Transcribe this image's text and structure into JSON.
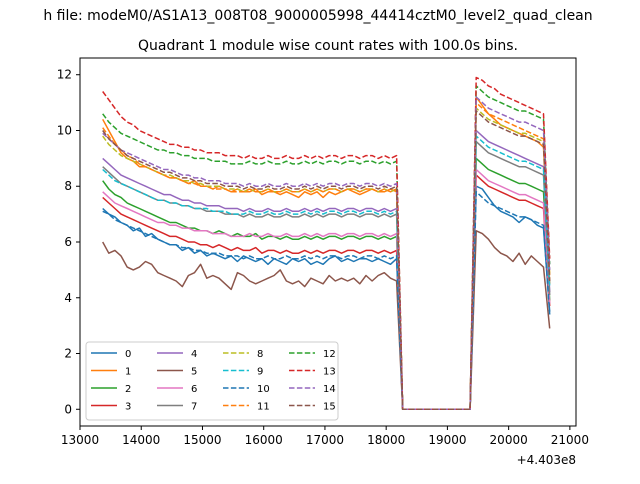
{
  "figure": {
    "suptitle": "h file: modeM0/AS1A13_008T08_9000005998_44414cztM0_level2_quad_clean"
  },
  "chart_data": {
    "type": "line",
    "title": "Quadrant 1 module wise count rates with 100.0s bins.",
    "xlabel": "",
    "ylabel": "",
    "x_offset_label": "+4.403e8",
    "xlim": [
      13000,
      21100
    ],
    "ylim": [
      -0.6,
      12.6
    ],
    "xticks": [
      13000,
      14000,
      15000,
      16000,
      17000,
      18000,
      19000,
      20000,
      21000
    ],
    "yticks": [
      0,
      2,
      4,
      6,
      8,
      10,
      12
    ],
    "grid": false,
    "legend_position": "lower-left",
    "legend_columns": 4,
    "segments": {
      "seg1": {
        "x_start": 13370,
        "x_step": 100,
        "count": 49
      },
      "gap": {
        "x": [
          18270,
          18370,
          19370
        ]
      },
      "seg2": {
        "x_start": 19470,
        "x_step": 100,
        "count": 13
      }
    },
    "series": [
      {
        "name": "0",
        "color": "#1f77b4",
        "dash": "solid",
        "seg1": [
          7.2,
          7.0,
          6.9,
          6.7,
          6.6,
          6.4,
          6.5,
          6.2,
          6.3,
          6.1,
          6.0,
          5.9,
          5.9,
          5.7,
          5.8,
          5.6,
          5.7,
          5.5,
          5.6,
          5.5,
          5.4,
          5.5,
          5.3,
          5.5,
          5.4,
          5.3,
          5.4,
          5.2,
          5.4,
          5.3,
          5.2,
          5.4,
          5.3,
          5.4,
          5.2,
          5.3,
          5.2,
          5.4,
          5.5,
          5.3,
          5.4,
          5.3,
          5.4,
          5.4,
          5.3,
          5.4,
          5.3,
          5.2,
          5.4
        ],
        "seg2": [
          8.0,
          7.9,
          7.6,
          7.3,
          7.1,
          7.0,
          6.9,
          6.7,
          6.9,
          6.8,
          6.6,
          6.5,
          3.5
        ]
      },
      {
        "name": "1",
        "color": "#ff7f0e",
        "dash": "solid",
        "seg1": [
          10.4,
          10.0,
          9.6,
          9.2,
          9.0,
          8.9,
          8.7,
          8.7,
          8.6,
          8.5,
          8.4,
          8.3,
          8.3,
          8.2,
          8.1,
          8.2,
          8.0,
          8.0,
          7.9,
          8.0,
          7.9,
          7.8,
          7.9,
          7.8,
          7.8,
          7.9,
          7.7,
          7.8,
          7.8,
          7.7,
          7.8,
          7.7,
          7.6,
          7.8,
          7.7,
          7.8,
          7.6,
          7.8,
          7.7,
          7.8,
          7.9,
          7.8,
          7.7,
          7.8,
          7.9,
          7.8,
          7.8,
          7.9,
          7.8
        ],
        "seg2": [
          11.2,
          10.9,
          10.6,
          10.4,
          10.2,
          10.1,
          10.0,
          9.9,
          9.8,
          9.7,
          9.6,
          9.4,
          4.5
        ]
      },
      {
        "name": "2",
        "color": "#2ca02c",
        "dash": "solid",
        "seg1": [
          8.2,
          7.9,
          7.7,
          7.6,
          7.4,
          7.3,
          7.2,
          7.1,
          7.0,
          6.9,
          6.8,
          6.7,
          6.7,
          6.6,
          6.5,
          6.5,
          6.4,
          6.4,
          6.3,
          6.4,
          6.3,
          6.2,
          6.3,
          6.2,
          6.2,
          6.3,
          6.1,
          6.2,
          6.2,
          6.1,
          6.2,
          6.1,
          6.1,
          6.2,
          6.1,
          6.2,
          6.1,
          6.2,
          6.2,
          6.1,
          6.2,
          6.2,
          6.1,
          6.2,
          6.2,
          6.1,
          6.2,
          6.1,
          6.2
        ],
        "seg2": [
          9.0,
          8.8,
          8.6,
          8.5,
          8.4,
          8.3,
          8.2,
          8.1,
          8.1,
          8.0,
          7.9,
          7.8,
          3.9
        ]
      },
      {
        "name": "3",
        "color": "#d62728",
        "dash": "solid",
        "seg1": [
          7.6,
          7.4,
          7.2,
          7.0,
          6.9,
          6.8,
          6.7,
          6.6,
          6.5,
          6.4,
          6.3,
          6.2,
          6.2,
          6.1,
          6.0,
          6.0,
          5.9,
          5.9,
          5.8,
          5.9,
          5.8,
          5.7,
          5.8,
          5.7,
          5.7,
          5.8,
          5.6,
          5.7,
          5.7,
          5.6,
          5.7,
          5.6,
          5.6,
          5.7,
          5.6,
          5.7,
          5.6,
          5.7,
          5.7,
          5.6,
          5.7,
          5.7,
          5.6,
          5.7,
          5.7,
          5.6,
          5.7,
          5.6,
          5.7
        ],
        "seg2": [
          8.4,
          8.2,
          8.0,
          7.9,
          7.8,
          7.7,
          7.6,
          7.5,
          7.5,
          7.4,
          7.3,
          7.2,
          3.7
        ]
      },
      {
        "name": "4",
        "color": "#9467bd",
        "dash": "solid",
        "seg1": [
          9.0,
          8.8,
          8.6,
          8.4,
          8.3,
          8.2,
          8.1,
          8.0,
          7.9,
          7.8,
          7.7,
          7.7,
          7.6,
          7.5,
          7.5,
          7.4,
          7.4,
          7.3,
          7.3,
          7.3,
          7.2,
          7.2,
          7.2,
          7.1,
          7.2,
          7.1,
          7.1,
          7.2,
          7.1,
          7.1,
          7.2,
          7.1,
          7.1,
          7.2,
          7.1,
          7.2,
          7.1,
          7.2,
          7.2,
          7.1,
          7.2,
          7.2,
          7.1,
          7.2,
          7.2,
          7.1,
          7.2,
          7.1,
          7.2
        ],
        "seg2": [
          10.0,
          9.8,
          9.6,
          9.5,
          9.4,
          9.3,
          9.2,
          9.1,
          9.0,
          8.9,
          8.8,
          8.7,
          4.2
        ]
      },
      {
        "name": "5",
        "color": "#8c564b",
        "dash": "solid",
        "seg1": [
          6.0,
          5.6,
          5.7,
          5.5,
          5.1,
          5.0,
          5.1,
          5.3,
          5.2,
          4.9,
          4.8,
          4.7,
          4.6,
          4.4,
          4.8,
          4.9,
          5.2,
          4.7,
          4.8,
          4.7,
          4.5,
          4.3,
          4.9,
          4.8,
          4.6,
          4.5,
          4.6,
          4.7,
          4.8,
          5.0,
          4.6,
          4.5,
          4.6,
          4.4,
          4.7,
          4.6,
          4.5,
          4.8,
          4.6,
          4.7,
          4.6,
          4.7,
          4.5,
          4.8,
          4.6,
          4.8,
          4.9,
          4.7,
          4.6
        ],
        "seg2": [
          6.4,
          6.3,
          6.1,
          5.8,
          5.6,
          5.5,
          5.3,
          5.6,
          5.2,
          5.5,
          5.3,
          5.1,
          2.9
        ]
      },
      {
        "name": "6",
        "color": "#e377c2",
        "dash": "solid",
        "seg1": [
          7.8,
          7.6,
          7.4,
          7.3,
          7.2,
          7.1,
          7.0,
          6.9,
          6.8,
          6.7,
          6.7,
          6.6,
          6.6,
          6.5,
          6.5,
          6.4,
          6.4,
          6.4,
          6.3,
          6.3,
          6.3,
          6.2,
          6.2,
          6.2,
          6.3,
          6.2,
          6.2,
          6.3,
          6.2,
          6.2,
          6.3,
          6.2,
          6.2,
          6.3,
          6.2,
          6.3,
          6.2,
          6.3,
          6.3,
          6.2,
          6.3,
          6.3,
          6.2,
          6.3,
          6.3,
          6.2,
          6.3,
          6.2,
          6.3
        ],
        "seg2": [
          8.6,
          8.4,
          8.2,
          8.1,
          8.0,
          7.9,
          7.8,
          7.7,
          7.7,
          7.6,
          7.5,
          7.4,
          3.8
        ]
      },
      {
        "name": "7",
        "color": "#7f7f7f",
        "dash": "solid",
        "seg1": [
          8.7,
          8.5,
          8.3,
          8.1,
          8.0,
          7.9,
          7.8,
          7.7,
          7.6,
          7.5,
          7.5,
          7.4,
          7.4,
          7.3,
          7.3,
          7.2,
          7.2,
          7.1,
          7.1,
          7.1,
          7.0,
          7.0,
          7.0,
          6.9,
          7.0,
          6.9,
          6.9,
          7.0,
          6.9,
          6.9,
          7.0,
          6.9,
          6.9,
          7.0,
          6.9,
          7.0,
          6.9,
          7.0,
          7.0,
          6.9,
          7.0,
          7.0,
          6.9,
          7.0,
          7.0,
          6.9,
          7.0,
          6.9,
          7.0
        ],
        "seg2": [
          9.6,
          9.4,
          9.2,
          9.1,
          9.0,
          8.9,
          8.8,
          8.7,
          8.7,
          8.6,
          8.5,
          8.4,
          4.1
        ]
      },
      {
        "name": "8",
        "color": "#bcbd22",
        "dash": "dash",
        "seg1": [
          9.8,
          9.5,
          9.3,
          9.1,
          9.0,
          8.9,
          8.8,
          8.7,
          8.6,
          8.5,
          8.4,
          8.4,
          8.3,
          8.2,
          8.2,
          8.1,
          8.1,
          8.0,
          8.0,
          8.0,
          7.9,
          7.9,
          7.9,
          7.8,
          7.9,
          7.8,
          7.8,
          7.9,
          7.8,
          7.8,
          7.9,
          7.8,
          7.8,
          7.9,
          7.8,
          7.9,
          7.8,
          7.9,
          7.9,
          7.8,
          7.9,
          7.9,
          7.8,
          7.9,
          7.9,
          7.8,
          7.9,
          7.8,
          7.9
        ],
        "seg2": [
          10.8,
          10.6,
          10.4,
          10.3,
          10.2,
          10.1,
          10.0,
          9.9,
          9.9,
          9.8,
          9.7,
          9.6,
          4.8
        ]
      },
      {
        "name": "9",
        "color": "#17becf",
        "dash": "dash",
        "seg1": [
          8.6,
          8.4,
          8.2,
          8.1,
          8.0,
          7.9,
          7.8,
          7.7,
          7.6,
          7.5,
          7.5,
          7.4,
          7.4,
          7.3,
          7.3,
          7.2,
          7.2,
          7.2,
          7.1,
          7.1,
          7.1,
          7.0,
          7.0,
          7.0,
          7.1,
          7.0,
          7.0,
          7.1,
          7.0,
          7.0,
          7.1,
          7.0,
          7.0,
          7.1,
          7.0,
          7.1,
          7.0,
          7.1,
          7.1,
          7.0,
          7.1,
          7.1,
          7.0,
          7.1,
          7.1,
          7.0,
          7.1,
          7.0,
          7.1
        ],
        "seg2": [
          9.8,
          9.6,
          9.4,
          9.3,
          9.2,
          9.1,
          9.0,
          8.9,
          8.9,
          8.8,
          8.7,
          8.6,
          4.4
        ]
      },
      {
        "name": "10",
        "color": "#1f77b4",
        "dash": "dash",
        "seg1": [
          7.1,
          7.0,
          6.8,
          6.7,
          6.6,
          6.5,
          6.4,
          6.3,
          6.2,
          6.1,
          6.0,
          5.9,
          5.9,
          5.8,
          5.8,
          5.7,
          5.7,
          5.6,
          5.6,
          5.6,
          5.5,
          5.5,
          5.5,
          5.4,
          5.5,
          5.4,
          5.4,
          5.5,
          5.4,
          5.4,
          5.5,
          5.4,
          5.4,
          5.5,
          5.4,
          5.5,
          5.4,
          5.5,
          5.5,
          5.4,
          5.5,
          5.5,
          5.4,
          5.5,
          5.5,
          5.4,
          5.5,
          5.4,
          5.5
        ],
        "seg2": [
          7.8,
          7.6,
          7.4,
          7.3,
          7.2,
          7.1,
          7.0,
          6.9,
          6.9,
          6.8,
          6.7,
          6.6,
          3.4
        ]
      },
      {
        "name": "11",
        "color": "#ff7f0e",
        "dash": "dash",
        "seg1": [
          10.1,
          9.8,
          9.5,
          9.3,
          9.1,
          9.0,
          8.8,
          8.7,
          8.6,
          8.5,
          8.4,
          8.3,
          8.3,
          8.2,
          8.1,
          8.1,
          8.0,
          8.0,
          7.9,
          7.9,
          7.9,
          7.8,
          7.8,
          7.8,
          7.9,
          7.8,
          7.8,
          7.9,
          7.8,
          7.8,
          7.9,
          7.8,
          7.8,
          7.9,
          7.8,
          7.9,
          7.8,
          7.9,
          7.9,
          7.8,
          7.9,
          7.9,
          7.8,
          7.9,
          7.9,
          7.8,
          7.9,
          7.8,
          7.9
        ],
        "seg2": [
          11.0,
          10.8,
          10.6,
          10.5,
          10.4,
          10.3,
          10.2,
          10.1,
          10.0,
          9.9,
          9.8,
          9.7,
          4.7
        ]
      },
      {
        "name": "12",
        "color": "#2ca02c",
        "dash": "dash",
        "seg1": [
          10.6,
          10.3,
          10.1,
          9.9,
          9.8,
          9.7,
          9.6,
          9.5,
          9.4,
          9.3,
          9.3,
          9.2,
          9.2,
          9.1,
          9.1,
          9.0,
          9.0,
          9.0,
          8.9,
          8.9,
          8.9,
          8.8,
          8.8,
          8.8,
          8.9,
          8.8,
          8.8,
          8.9,
          8.8,
          8.8,
          8.9,
          8.8,
          8.8,
          8.9,
          8.8,
          8.9,
          8.8,
          8.9,
          8.9,
          8.8,
          8.9,
          8.9,
          8.8,
          8.9,
          8.9,
          8.8,
          8.9,
          8.8,
          8.9
        ],
        "seg2": [
          11.6,
          11.4,
          11.2,
          11.1,
          11.0,
          10.9,
          10.8,
          10.7,
          10.7,
          10.6,
          10.5,
          10.4,
          5.2
        ]
      },
      {
        "name": "13",
        "color": "#d62728",
        "dash": "dash",
        "seg1": [
          11.4,
          11.1,
          10.8,
          10.5,
          10.3,
          10.2,
          10.0,
          9.9,
          9.8,
          9.7,
          9.6,
          9.5,
          9.5,
          9.4,
          9.4,
          9.3,
          9.3,
          9.2,
          9.2,
          9.2,
          9.1,
          9.1,
          9.1,
          9.0,
          9.1,
          9.0,
          9.0,
          9.1,
          9.0,
          9.0,
          9.1,
          9.0,
          9.0,
          9.1,
          9.0,
          9.1,
          9.0,
          9.1,
          9.1,
          9.0,
          9.1,
          9.1,
          9.0,
          9.1,
          9.1,
          9.0,
          9.1,
          9.0,
          9.1
        ],
        "seg2": [
          11.9,
          11.8,
          11.6,
          11.5,
          11.3,
          11.2,
          11.1,
          11.0,
          10.9,
          10.8,
          10.7,
          10.6,
          5.4
        ]
      },
      {
        "name": "14",
        "color": "#9467bd",
        "dash": "dash",
        "seg1": [
          9.9,
          9.7,
          9.5,
          9.3,
          9.2,
          9.1,
          9.0,
          8.9,
          8.8,
          8.7,
          8.6,
          8.6,
          8.5,
          8.4,
          8.4,
          8.3,
          8.3,
          8.2,
          8.2,
          8.2,
          8.1,
          8.1,
          8.1,
          8.0,
          8.1,
          8.0,
          8.0,
          8.1,
          8.0,
          8.0,
          8.1,
          8.0,
          8.0,
          8.1,
          8.0,
          8.1,
          8.0,
          8.1,
          8.1,
          8.0,
          8.1,
          8.1,
          8.0,
          8.1,
          8.1,
          8.0,
          8.1,
          8.0,
          8.1
        ],
        "seg2": [
          11.2,
          11.0,
          10.8,
          10.7,
          10.6,
          10.5,
          10.4,
          10.3,
          10.3,
          10.2,
          10.1,
          10.0,
          5.0
        ]
      },
      {
        "name": "15",
        "color": "#8c564b",
        "dash": "dash",
        "seg1": [
          10.0,
          9.7,
          9.5,
          9.3,
          9.1,
          9.0,
          8.9,
          8.8,
          8.7,
          8.6,
          8.5,
          8.5,
          8.4,
          8.3,
          8.3,
          8.2,
          8.2,
          8.1,
          8.1,
          8.1,
          8.0,
          8.0,
          8.0,
          7.9,
          8.0,
          7.9,
          7.9,
          8.0,
          7.9,
          7.9,
          8.0,
          7.9,
          7.9,
          8.0,
          7.9,
          8.0,
          7.9,
          8.0,
          8.0,
          7.9,
          8.0,
          8.0,
          7.9,
          8.0,
          8.0,
          7.9,
          8.0,
          7.9,
          8.0
        ],
        "seg2": [
          10.7,
          10.5,
          10.3,
          10.2,
          10.1,
          10.0,
          9.9,
          9.8,
          9.8,
          9.7,
          9.6,
          9.5,
          4.6
        ]
      }
    ]
  }
}
